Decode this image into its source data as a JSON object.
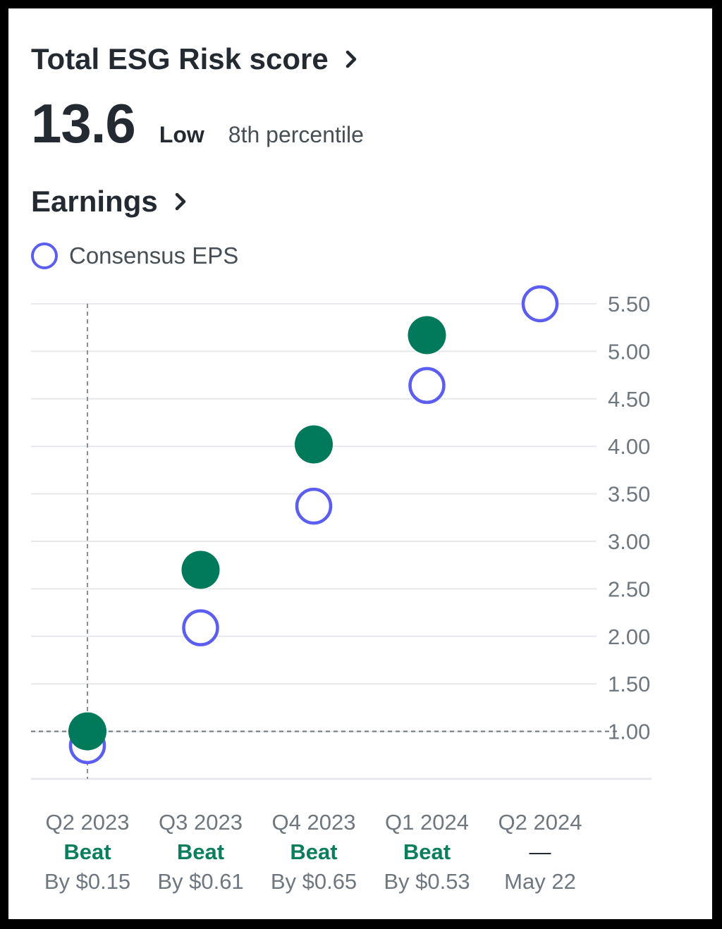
{
  "esg": {
    "title": "Total ESG Risk score",
    "score": "13.6",
    "level": "Low",
    "percentile": "8th percentile"
  },
  "earnings": {
    "title": "Earnings",
    "legend_label": "Consensus EPS"
  },
  "colors": {
    "actual": "#007a5a",
    "consensus": "#5b5ef0",
    "beat_text": "#0b7f5d",
    "grid": "#e6e8eb"
  },
  "chart_data": {
    "type": "scatter",
    "categories": [
      "Q2 2023",
      "Q3 2023",
      "Q4 2023",
      "Q1 2024",
      "Q2 2024"
    ],
    "series": [
      {
        "name": "Consensus EPS",
        "values": [
          0.85,
          2.09,
          3.37,
          4.64,
          5.5
        ]
      },
      {
        "name": "",
        "values": [
          1.0,
          2.7,
          4.02,
          5.17,
          null
        ]
      }
    ],
    "yticks": [
      "5.50",
      "5.00",
      "4.50",
      "4.00",
      "3.50",
      "3.00",
      "2.50",
      "2.00",
      "1.50",
      "1.00"
    ],
    "ylim": [
      0.5,
      5.5
    ],
    "grid": true,
    "results": [
      "Beat",
      "Beat",
      "Beat",
      "Beat",
      "—"
    ],
    "details": [
      "By $0.15",
      "By $0.61",
      "By $0.65",
      "By $0.53",
      "May 22"
    ]
  }
}
